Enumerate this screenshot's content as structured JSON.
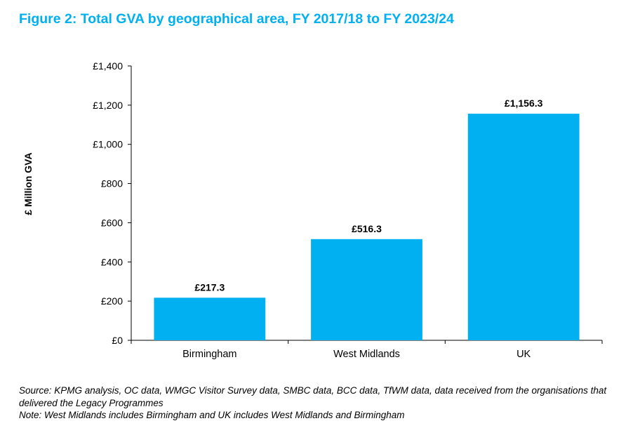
{
  "figure_title": "Figure 2: Total GVA by geographical area, FY 2017/18 to FY 2023/24",
  "chart_data": {
    "type": "bar",
    "title": "Figure 2: Total GVA by geographical area, FY 2017/18 to FY 2023/24",
    "xlabel": "",
    "ylabel": "£ Million GVA",
    "categories": [
      "Birmingham",
      "West Midlands",
      "UK"
    ],
    "values": [
      217.3,
      516.3,
      1156.3
    ],
    "data_labels": [
      "£217.3",
      "£516.3",
      "£1,156.3"
    ],
    "ylim": [
      0,
      1400
    ],
    "yticks": [
      0,
      200,
      400,
      600,
      800,
      1000,
      1200,
      1400
    ],
    "ytick_labels": [
      "£0",
      "£200",
      "£400",
      "£600",
      "£800",
      "£1,000",
      "£1,200",
      "£1,400"
    ],
    "bar_color": "#00b0f0",
    "grid": false,
    "legend": "none"
  },
  "notes": {
    "source": "Source: KPMG analysis, OC data, WMGC Visitor Survey data, SMBC data, BCC data, TfWM data, data received from the organisations that delivered the Legacy Programmes",
    "note": "Note: West Midlands includes Birmingham and UK includes West Midlands and Birmingham"
  },
  "colors": {
    "title": "#00b0f0",
    "bars": "#00b0f0",
    "axis": "#000000"
  }
}
